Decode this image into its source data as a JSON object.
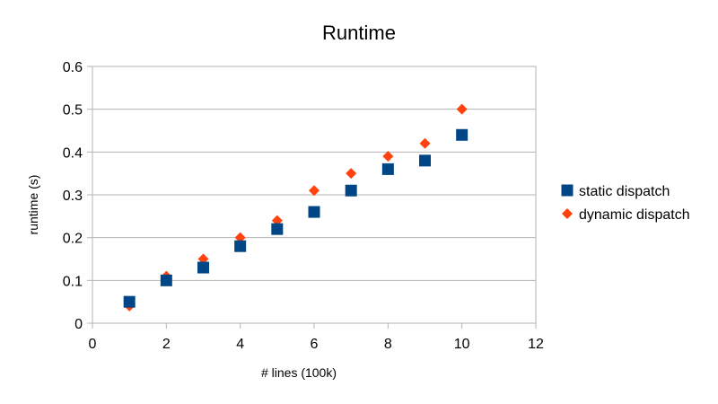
{
  "chart_data": {
    "type": "scatter",
    "title": "Runtime",
    "xlabel": "# lines (100k)",
    "ylabel": "runtime (s)",
    "xlim": [
      0,
      12
    ],
    "ylim": [
      0,
      0.6
    ],
    "xticks": [
      0,
      2,
      4,
      6,
      8,
      10,
      12
    ],
    "yticks": [
      0,
      0.1,
      0.2,
      0.3,
      0.4,
      0.5,
      0.6
    ],
    "grid": "horizontal",
    "legend_position": "right",
    "series": [
      {
        "name": "static dispatch",
        "marker": "square",
        "color": "#004586",
        "x": [
          1,
          2,
          3,
          4,
          5,
          6,
          7,
          8,
          9,
          10
        ],
        "y": [
          0.05,
          0.1,
          0.13,
          0.18,
          0.22,
          0.26,
          0.31,
          0.36,
          0.38,
          0.44
        ]
      },
      {
        "name": "dynamic dispatch",
        "marker": "diamond",
        "color": "#ff420e",
        "x": [
          1,
          2,
          3,
          4,
          5,
          6,
          7,
          8,
          9,
          10
        ],
        "y": [
          0.04,
          0.11,
          0.15,
          0.2,
          0.24,
          0.31,
          0.35,
          0.39,
          0.42,
          0.5
        ]
      }
    ]
  }
}
